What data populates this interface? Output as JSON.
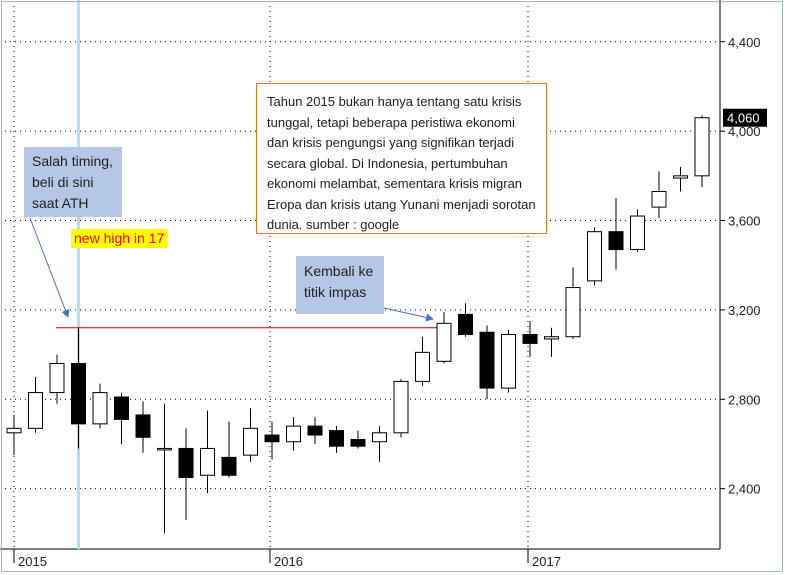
{
  "chart_data": {
    "type": "candlestick",
    "title": "",
    "xlabel": "",
    "ylabel": "",
    "ylim": [
      2130,
      4560
    ],
    "x_ticks": [
      "2015",
      "2016",
      "2017"
    ],
    "y_ticks": [
      2400,
      2800,
      3200,
      3600,
      4000,
      4400
    ],
    "y_tick_labels": [
      "2,400",
      "2,800",
      "3,200",
      "3,600",
      "4,000",
      "4,400"
    ],
    "grid": true,
    "last_price": "4,060",
    "candles": [
      {
        "period": "2015-01",
        "open": 2650,
        "high": 2730,
        "low": 2550,
        "close": 2670
      },
      {
        "period": "2015-02",
        "open": 2670,
        "high": 2900,
        "low": 2650,
        "close": 2830
      },
      {
        "period": "2015-03",
        "open": 2830,
        "high": 3000,
        "low": 2780,
        "close": 2960
      },
      {
        "period": "2015-04",
        "open": 2960,
        "high": 3120,
        "low": 2580,
        "close": 2690
      },
      {
        "period": "2015-05",
        "open": 2690,
        "high": 2870,
        "low": 2670,
        "close": 2830
      },
      {
        "period": "2015-06",
        "open": 2810,
        "high": 2830,
        "low": 2600,
        "close": 2710
      },
      {
        "period": "2015-07",
        "open": 2730,
        "high": 2790,
        "low": 2560,
        "close": 2630
      },
      {
        "period": "2015-08",
        "open": 2580,
        "high": 2780,
        "low": 2200,
        "close": 2580
      },
      {
        "period": "2015-09",
        "open": 2580,
        "high": 2670,
        "low": 2260,
        "close": 2450
      },
      {
        "period": "2015-10",
        "open": 2460,
        "high": 2750,
        "low": 2380,
        "close": 2580
      },
      {
        "period": "2015-11",
        "open": 2540,
        "high": 2700,
        "low": 2450,
        "close": 2460
      },
      {
        "period": "2015-12",
        "open": 2550,
        "high": 2760,
        "low": 2520,
        "close": 2670
      },
      {
        "period": "2016-01",
        "open": 2640,
        "high": 2700,
        "low": 2530,
        "close": 2610
      },
      {
        "period": "2016-02",
        "open": 2610,
        "high": 2720,
        "low": 2570,
        "close": 2680
      },
      {
        "period": "2016-03",
        "open": 2680,
        "high": 2720,
        "low": 2600,
        "close": 2640
      },
      {
        "period": "2016-04",
        "open": 2660,
        "high": 2680,
        "low": 2560,
        "close": 2590
      },
      {
        "period": "2016-05",
        "open": 2620,
        "high": 2660,
        "low": 2580,
        "close": 2590
      },
      {
        "period": "2016-06",
        "open": 2610,
        "high": 2680,
        "low": 2520,
        "close": 2650
      },
      {
        "period": "2016-07",
        "open": 2650,
        "high": 2890,
        "low": 2630,
        "close": 2880
      },
      {
        "period": "2016-08",
        "open": 2880,
        "high": 3080,
        "low": 2860,
        "close": 3010
      },
      {
        "period": "2016-09",
        "open": 2970,
        "high": 3190,
        "low": 2960,
        "close": 3140
      },
      {
        "period": "2016-10",
        "open": 3180,
        "high": 3230,
        "low": 3080,
        "close": 3090
      },
      {
        "period": "2016-11",
        "open": 3100,
        "high": 3130,
        "low": 2800,
        "close": 2850
      },
      {
        "period": "2016-12",
        "open": 2850,
        "high": 3110,
        "low": 2830,
        "close": 3090
      },
      {
        "period": "2017-01",
        "open": 3090,
        "high": 3150,
        "low": 2990,
        "close": 3050
      },
      {
        "period": "2017-02",
        "open": 3070,
        "high": 3120,
        "low": 2990,
        "close": 3080
      },
      {
        "period": "2017-03",
        "open": 3080,
        "high": 3390,
        "low": 3070,
        "close": 3300
      },
      {
        "period": "2017-04",
        "open": 3330,
        "high": 3570,
        "low": 3310,
        "close": 3550
      },
      {
        "period": "2017-05",
        "open": 3550,
        "high": 3700,
        "low": 3380,
        "close": 3470
      },
      {
        "period": "2017-06",
        "open": 3470,
        "high": 3650,
        "low": 3460,
        "close": 3620
      },
      {
        "period": "2017-07",
        "open": 3660,
        "high": 3820,
        "low": 3610,
        "close": 3730
      },
      {
        "period": "2017-08",
        "open": 3790,
        "high": 3840,
        "low": 3730,
        "close": 3800
      },
      {
        "period": "2017-09",
        "open": 3800,
        "high": 4070,
        "low": 3750,
        "close": 4060
      }
    ],
    "colors": {
      "bull_fill": "#ffffff",
      "bear_fill": "#000000",
      "candle_line": "#000000",
      "grid": "#000000",
      "ath_level_line": "#c00000",
      "timing_line": "#9de8f7",
      "arrow": "#4472c4",
      "axis": "#000000"
    }
  },
  "annotations": {
    "ath_callout": "Salah timing,\nbeli di sini\nsaat ATH",
    "breakeven_callout": "Kembali ke\ntitik impas",
    "new_high_label": "new high in 17",
    "note_text": "Tahun 2015 bukan hanya tentang satu krisis tunggal, tetapi beberapa peristiwa ekonomi dan krisis pengungsi yang signifikan terjadi secara global. Di Indonesia, pertumbuhan ekonomi melambat, sementara krisis migran Eropa dan krisis utang Yunani menjadi sorotan dunia. sumber : google"
  }
}
